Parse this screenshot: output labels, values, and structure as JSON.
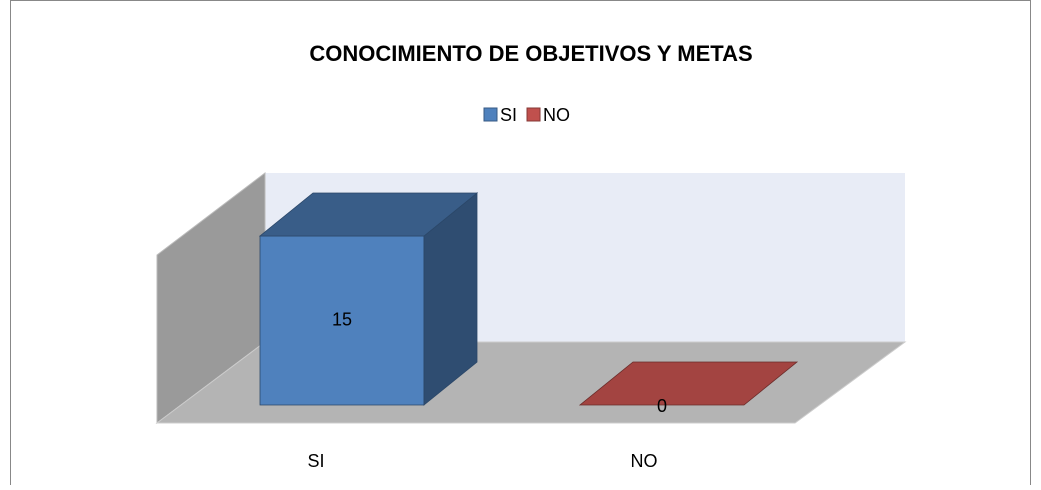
{
  "chart_data": {
    "type": "bar3d",
    "title": "CONOCIMIENTO DE OBJETIVOS  Y METAS",
    "categories": [
      "SI",
      "NO"
    ],
    "values": [
      15,
      0
    ],
    "colors": [
      "#4f81bd",
      "#c0504d"
    ],
    "ylim": [
      0,
      15
    ],
    "legend": "top"
  }
}
